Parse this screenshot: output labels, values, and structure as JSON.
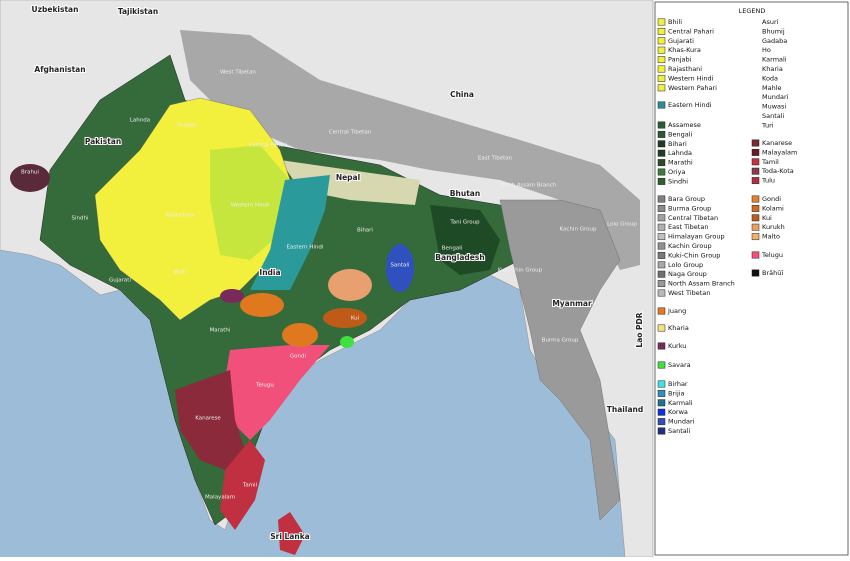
{
  "countries": [
    {
      "label": "Uzbekistan"
    },
    {
      "label": "Tajikistan"
    },
    {
      "label": "Afghanistan"
    },
    {
      "label": "Pakistan"
    },
    {
      "label": "China"
    },
    {
      "label": "Nepal"
    },
    {
      "label": "Bhutan"
    },
    {
      "label": "India"
    },
    {
      "label": "Bangladesh"
    },
    {
      "label": "Myanmar"
    },
    {
      "label": "Lao PDR"
    },
    {
      "label": "Thailand"
    },
    {
      "label": "Sri Lanka"
    }
  ],
  "regions": [
    "Brahui",
    "Sindhi",
    "Lahnda",
    "Punjabi",
    "West Tibetan",
    "Central Tibetan",
    "East Tibetan",
    "Western Hindi",
    "Rajasthani",
    "Gujarati",
    "Bhili",
    "Eastern Hindi",
    "Bihari",
    "Santali",
    "Bengali",
    "Marathi",
    "Telugu",
    "Kanarese",
    "Tamil",
    "Malayalam",
    "Gondi",
    "Kui",
    "Kachin Group",
    "Kuki-Chin Group",
    "Burma Group",
    "Lolo Group",
    "Tani Group",
    "North Assam Branch",
    "Central Pahari"
  ],
  "legend": {
    "title": "LEGEND",
    "left": [
      [
        {
          "label": "Bhili",
          "color": "#f2f03c"
        },
        {
          "label": "Central Pahari",
          "color": "#f2f03c"
        },
        {
          "label": "Gujarati",
          "color": "#f2f03c"
        },
        {
          "label": "Khas-Kura",
          "color": "#f2f03c"
        },
        {
          "label": "Panjabi",
          "color": "#f2f03c"
        },
        {
          "label": "Rajasthani",
          "color": "#f2f03c"
        },
        {
          "label": "Western Hindi",
          "color": "#f2f03c"
        },
        {
          "label": "Western Pahari",
          "color": "#f2f03c"
        }
      ],
      [
        {
          "label": "Eastern Hindi",
          "color": "#2a8f95"
        }
      ],
      [
        {
          "label": "Assamese",
          "color": "#2d5a36"
        },
        {
          "label": "Bengali",
          "color": "#2d5a36"
        },
        {
          "label": "Bihari",
          "color": "#1f3d22"
        },
        {
          "label": "Lahnda",
          "color": "#1f3d22"
        },
        {
          "label": "Marathi",
          "color": "#2a4a2a"
        },
        {
          "label": "Oriya",
          "color": "#3a7a3a"
        },
        {
          "label": "Sindhi",
          "color": "#2f5f2f"
        }
      ],
      [
        {
          "label": "Bara Group",
          "color": "#808080"
        },
        {
          "label": "Burma Group",
          "color": "#8a8a8a"
        },
        {
          "label": "Central Tibetan",
          "color": "#a0a0a0"
        },
        {
          "label": "East Tibetan",
          "color": "#b0b0b0"
        },
        {
          "label": "Himalayan Group",
          "color": "#c0c0c0"
        },
        {
          "label": "Kachin Group",
          "color": "#909090"
        },
        {
          "label": "Kuki-Chin Group",
          "color": "#7a7a7a"
        },
        {
          "label": "Lolo Group",
          "color": "#a8a8a8"
        },
        {
          "label": "Naga Group",
          "color": "#707070"
        },
        {
          "label": "North Assam Branch",
          "color": "#989898"
        },
        {
          "label": "West Tibetan",
          "color": "#b8b8b8"
        }
      ],
      [
        {
          "label": "Juang",
          "color": "#e87820"
        }
      ],
      [
        {
          "label": "Kharia",
          "color": "#f5e27a"
        }
      ],
      [
        {
          "label": "Kurku",
          "color": "#7a2a5a"
        }
      ],
      [
        {
          "label": "Savara",
          "color": "#40e040"
        }
      ],
      [
        {
          "label": "Birhar",
          "color": "#40e0e8"
        },
        {
          "label": "Brijia",
          "color": "#3090c0"
        },
        {
          "label": "Karmali",
          "color": "#207090"
        },
        {
          "label": "Korwa",
          "color": "#1030e0"
        },
        {
          "label": "Mundari",
          "color": "#3050c0"
        },
        {
          "label": "Santali",
          "color": "#203080"
        }
      ]
    ],
    "right": [
      [
        {
          "label": "Asuri"
        },
        {
          "label": "Bhumij"
        },
        {
          "label": "Gadaba"
        },
        {
          "label": "Ho"
        },
        {
          "label": "Karmali"
        },
        {
          "label": "Kharia"
        },
        {
          "label": "Koda"
        },
        {
          "label": "Mahle"
        },
        {
          "label": "Mundari"
        },
        {
          "label": "Muwasi"
        },
        {
          "label": "Santali"
        },
        {
          "label": "Turi"
        }
      ],
      [
        {
          "label": "Kanarese",
          "color": "#7a2a30"
        },
        {
          "label": "Malayalam",
          "color": "#6a1a28"
        },
        {
          "label": "Tamil",
          "color": "#c03040"
        },
        {
          "label": "Toda-Kota",
          "color": "#8a3a4a"
        },
        {
          "label": "Tulu",
          "color": "#b03040"
        }
      ],
      [
        {
          "label": "Gondi",
          "color": "#e08030"
        },
        {
          "label": "Kolami",
          "color": "#d06a20"
        },
        {
          "label": "Kui",
          "color": "#c05a18"
        },
        {
          "label": "Kurukh",
          "color": "#e8a060"
        },
        {
          "label": "Malto",
          "color": "#f0b070"
        }
      ],
      [
        {
          "label": "Telugu",
          "color": "#f0507a"
        }
      ],
      [
        {
          "label": "Brāhūī",
          "color": "#101010"
        }
      ]
    ]
  }
}
